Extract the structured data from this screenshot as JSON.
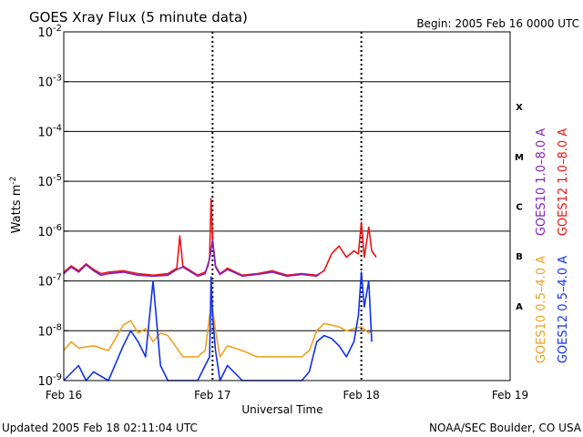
{
  "header": {
    "title": "GOES Xray Flux (5 minute data)",
    "begin": "Begin:  2005 Feb 16 0000 UTC"
  },
  "footer": {
    "updated": "Updated 2005 Feb 18 02:11:04 UTC",
    "credit": "NOAA/SEC Boulder, CO USA"
  },
  "chart_data": {
    "type": "line",
    "title": "GOES Xray Flux (5 minute data)",
    "xlabel": "Universal Time",
    "ylabel": "Watts m",
    "ylabel_exp": "-2",
    "yscale": "log",
    "ylim": [
      1e-09,
      0.01
    ],
    "xlim_days": [
      0,
      3
    ],
    "x_ticks": [
      {
        "day": 0,
        "label": "Feb 16"
      },
      {
        "day": 1,
        "label": "Feb 17"
      },
      {
        "day": 2,
        "label": "Feb 18"
      },
      {
        "day": 3,
        "label": "Feb 19"
      }
    ],
    "y_ticks": [
      {
        "exp": -9,
        "base": "10",
        "sup": "-9"
      },
      {
        "exp": -8,
        "base": "10",
        "sup": "-8"
      },
      {
        "exp": -7,
        "base": "10",
        "sup": "-7"
      },
      {
        "exp": -6,
        "base": "10",
        "sup": "-6"
      },
      {
        "exp": -5,
        "base": "10",
        "sup": "-5"
      },
      {
        "exp": -4,
        "base": "10",
        "sup": "-4"
      },
      {
        "exp": -3,
        "base": "10",
        "sup": "-3"
      },
      {
        "exp": -2,
        "base": "10",
        "sup": "-2"
      }
    ],
    "flare_classes": [
      {
        "label": "A",
        "exp": -7.5
      },
      {
        "label": "B",
        "exp": -6.5
      },
      {
        "label": "C",
        "exp": -5.5
      },
      {
        "label": "M",
        "exp": -4.5
      },
      {
        "label": "X",
        "exp": -3.5
      }
    ],
    "grid": true,
    "legend": [
      {
        "name": "GOES10 1.0–8.0 A",
        "color": "#8020c0"
      },
      {
        "name": "GOES12 1.0–8.0 A",
        "color": "#ee1111"
      },
      {
        "name": "GOES10 0.5–4.0 A",
        "color": "#f0a020"
      },
      {
        "name": "GOES12 0.5–4.0 A",
        "color": "#1030ee"
      }
    ],
    "series": [
      {
        "name": "GOES12 1.0–8.0 A",
        "color": "#ee1111",
        "x": [
          0,
          0.05,
          0.1,
          0.15,
          0.2,
          0.25,
          0.3,
          0.4,
          0.5,
          0.6,
          0.7,
          0.76,
          0.78,
          0.8,
          0.9,
          0.95,
          0.97,
          0.98,
          0.99,
          1.0,
          1.02,
          1.05,
          1.1,
          1.2,
          1.3,
          1.4,
          1.5,
          1.6,
          1.7,
          1.75,
          1.8,
          1.85,
          1.9,
          1.95,
          1.98,
          2.0,
          2.02,
          2.05,
          2.07,
          2.1
        ],
        "y": [
          1.5e-07,
          2e-07,
          1.6e-07,
          2.2e-07,
          1.7e-07,
          1.4e-07,
          1.5e-07,
          1.6e-07,
          1.4e-07,
          1.3e-07,
          1.4e-07,
          1.8e-07,
          8e-07,
          2e-07,
          1.3e-07,
          1.5e-07,
          2e-07,
          3e-07,
          4.5e-06,
          7e-07,
          2e-07,
          1.4e-07,
          1.8e-07,
          1.3e-07,
          1.4e-07,
          1.6e-07,
          1.3e-07,
          1.4e-07,
          1.3e-07,
          1.6e-07,
          3.5e-07,
          5e-07,
          3e-07,
          4e-07,
          3.5e-07,
          1.5e-06,
          3e-07,
          1.2e-06,
          4e-07,
          3e-07
        ]
      },
      {
        "name": "GOES10 1.0–8.0 A",
        "color": "#8020c0",
        "x": [
          0,
          0.05,
          0.1,
          0.15,
          0.2,
          0.25,
          0.3,
          0.4,
          0.5,
          0.6,
          0.7,
          0.76,
          0.8,
          0.9,
          0.95,
          0.98,
          1.0,
          1.02,
          1.05,
          1.1,
          1.2,
          1.3,
          1.4,
          1.5,
          1.6,
          1.7,
          1.72
        ],
        "y": [
          1.4e-07,
          1.9e-07,
          1.5e-07,
          2.1e-07,
          1.6e-07,
          1.3e-07,
          1.4e-07,
          1.5e-07,
          1.3e-07,
          1.25e-07,
          1.3e-07,
          1.7e-07,
          1.9e-07,
          1.25e-07,
          1.4e-07,
          2.8e-07,
          6.5e-07,
          1.9e-07,
          1.35e-07,
          1.7e-07,
          1.25e-07,
          1.35e-07,
          1.5e-07,
          1.25e-07,
          1.35e-07,
          1.25e-07,
          1.4e-07
        ]
      },
      {
        "name": "GOES10 0.5–4.0 A",
        "color": "#f0a020",
        "x": [
          0,
          0.05,
          0.1,
          0.2,
          0.3,
          0.4,
          0.45,
          0.5,
          0.55,
          0.6,
          0.65,
          0.7,
          0.75,
          0.8,
          0.9,
          0.95,
          0.98,
          1.0,
          1.02,
          1.05,
          1.1,
          1.2,
          1.3,
          1.4,
          1.5,
          1.6,
          1.65,
          1.7,
          1.75,
          1.8,
          1.85,
          1.9,
          1.95,
          2.0,
          2.05,
          2.07
        ],
        "y": [
          4e-09,
          6e-09,
          4.5e-09,
          5e-09,
          4e-09,
          1.3e-08,
          1.6e-08,
          9e-09,
          1.1e-08,
          6e-09,
          9e-09,
          8e-09,
          5e-09,
          3e-09,
          3e-09,
          4e-09,
          2e-08,
          3e-08,
          1e-08,
          3e-09,
          5e-09,
          4e-09,
          3e-09,
          3e-09,
          3e-09,
          3e-09,
          4e-09,
          1e-08,
          1.4e-08,
          1.3e-08,
          1.2e-08,
          1e-08,
          1.1e-08,
          1.2e-08,
          9e-09,
          1e-08
        ]
      },
      {
        "name": "GOES12 0.5–4.0 A",
        "color": "#1030ee",
        "x": [
          0,
          0.1,
          0.15,
          0.2,
          0.3,
          0.4,
          0.45,
          0.5,
          0.55,
          0.6,
          0.65,
          0.7,
          0.8,
          0.9,
          0.95,
          0.98,
          0.99,
          1.0,
          1.02,
          1.05,
          1.1,
          1.2,
          1.3,
          1.4,
          1.5,
          1.6,
          1.65,
          1.7,
          1.75,
          1.8,
          1.85,
          1.9,
          1.95,
          1.98,
          2.0,
          2.02,
          2.05,
          2.07
        ],
        "y": [
          1e-09,
          2e-09,
          1e-09,
          1.5e-09,
          1e-09,
          5e-09,
          1e-08,
          6e-09,
          3e-09,
          1e-07,
          2e-09,
          1e-09,
          1e-09,
          1e-09,
          2e-09,
          3e-09,
          1.2e-07,
          2e-08,
          4e-09,
          1e-09,
          2e-09,
          1e-09,
          1e-09,
          1e-09,
          1e-09,
          1e-09,
          1.5e-09,
          6e-09,
          8e-09,
          7e-09,
          5e-09,
          3e-09,
          6e-09,
          2e-08,
          1.5e-07,
          3e-08,
          1e-07,
          6e-09
        ]
      }
    ]
  }
}
